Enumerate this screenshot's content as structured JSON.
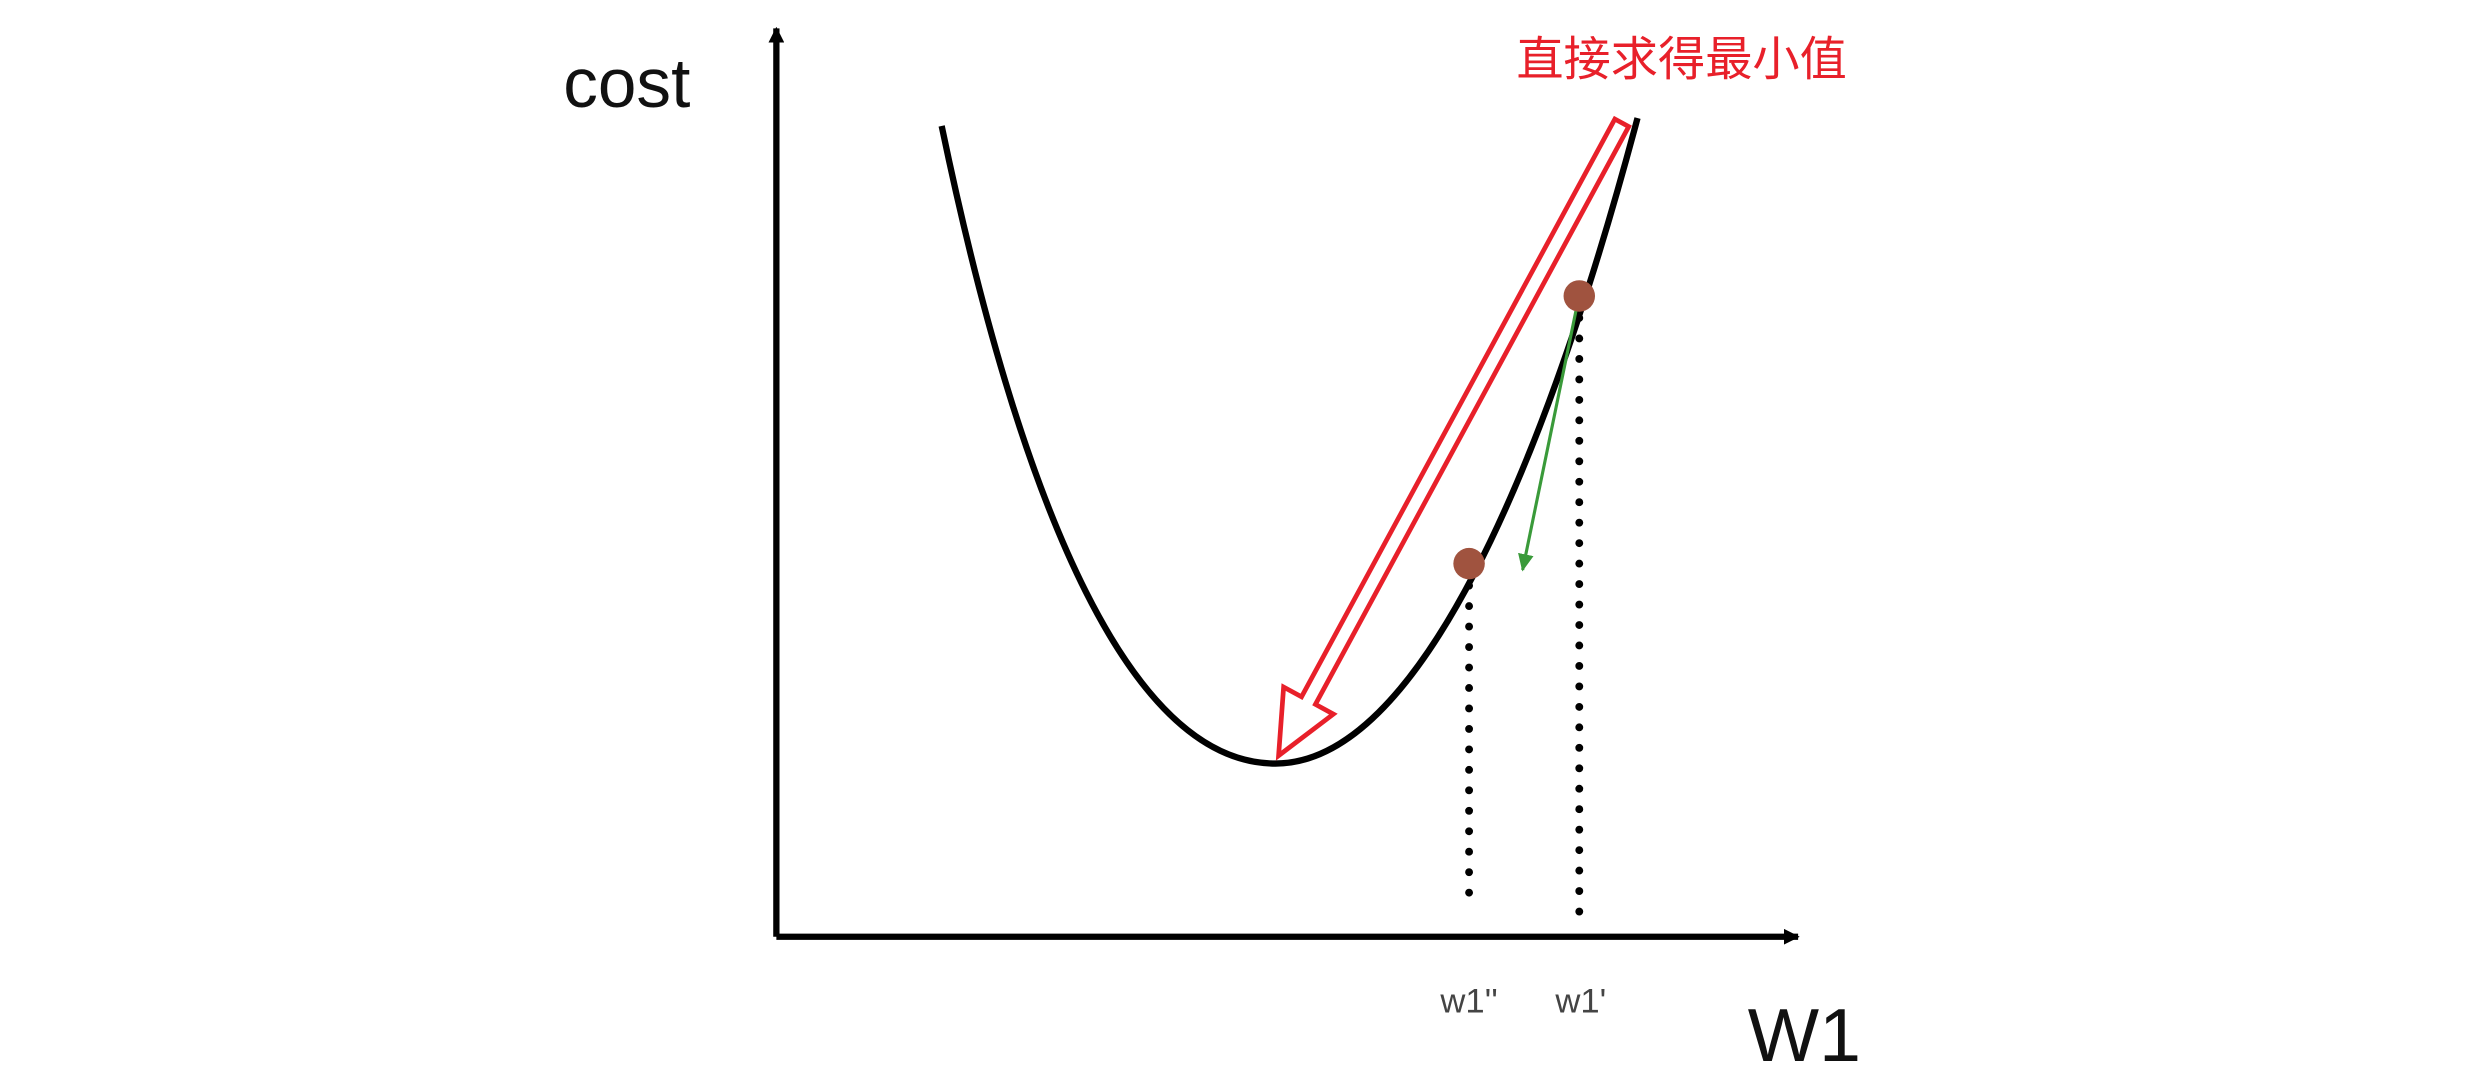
{
  "labels": {
    "y_axis": "cost",
    "x_axis": "W1",
    "point_1": "w1''",
    "point_2": "w1'",
    "annotation": "直接求得最小值"
  }
}
